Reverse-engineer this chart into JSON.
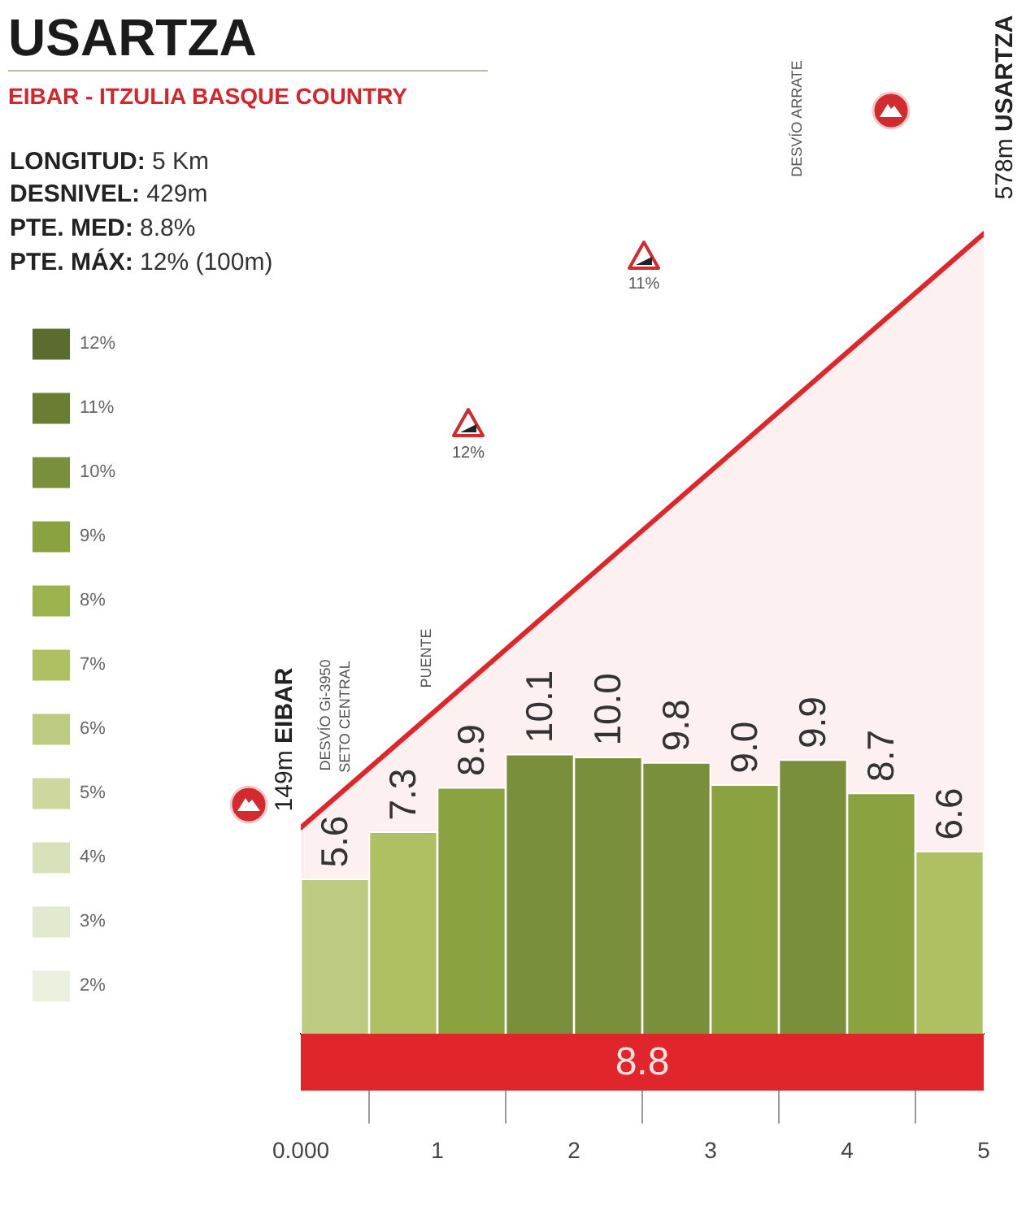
{
  "chart_data": {
    "type": "bar",
    "title": "USARTZA",
    "subtitle": "EIBAR - ITZULIA BASQUE COUNTRY",
    "x": [
      0.25,
      0.75,
      1.25,
      1.75,
      2.25,
      2.75,
      3.25,
      3.75,
      4.25,
      4.75
    ],
    "xlim": [
      0,
      5
    ],
    "xticks": [
      {
        "value": 0,
        "label": "0.000"
      },
      1,
      2,
      3,
      4,
      5
    ],
    "tick_labels": "x",
    "legend": "left",
    "series": [
      {
        "type": "area",
        "x": [
          0,
          5
        ],
        "values": [
          149,
          578
        ],
        "value_labels": [
          "149m EIBAR",
          "578m USARTZA"
        ],
        "color": "#e0262b"
      },
      {
        "name": "12%",
        "color": "#5c6b2e",
        "axis": "y2",
        "values": [
          null,
          null,
          null,
          null,
          null,
          null,
          null,
          null,
          null,
          null
        ]
      },
      {
        "name": "11%",
        "color": "#6a7d33",
        "axis": "y2",
        "values": [
          null,
          null,
          null,
          null,
          null,
          null,
          null,
          null,
          null,
          null
        ]
      },
      {
        "name": "10%",
        "color": "#7a8f3c",
        "axis": "y2",
        "values": [
          null,
          null,
          null,
          10.1,
          10.0,
          9.8,
          null,
          9.9,
          null,
          null
        ],
        "value_labels": [
          null,
          null,
          null,
          "10.1",
          "10.0",
          "9.8",
          null,
          "9.9",
          null,
          null
        ]
      },
      {
        "name": "9%",
        "color": "#8aa23f",
        "axis": "y2",
        "values": [
          null,
          null,
          8.9,
          null,
          null,
          null,
          9.0,
          null,
          8.7,
          null
        ],
        "value_labels": [
          null,
          null,
          "8.9",
          null,
          null,
          null,
          "9.0",
          null,
          "8.7",
          null
        ]
      },
      {
        "name": "8%",
        "color": "#9cb24c",
        "axis": "y2",
        "values": [
          null,
          null,
          null,
          null,
          null,
          null,
          null,
          null,
          null,
          null
        ]
      },
      {
        "name": "7%",
        "color": "#aec062",
        "axis": "y2",
        "values": [
          null,
          7.3,
          null,
          null,
          null,
          null,
          null,
          null,
          null,
          6.6
        ],
        "value_labels": [
          null,
          "7.3",
          null,
          null,
          null,
          null,
          null,
          null,
          null,
          "6.6"
        ]
      },
      {
        "name": "6%",
        "color": "#bccb80",
        "axis": "y2",
        "values": [
          5.6,
          null,
          null,
          null,
          null,
          null,
          null,
          null,
          null,
          null
        ],
        "value_labels": [
          "5.6",
          null,
          null,
          null,
          null,
          null,
          null,
          null,
          null,
          null
        ]
      },
      {
        "name": "5%",
        "color": "#cdd79e",
        "axis": "y2",
        "values": [
          null,
          null,
          null,
          null,
          null,
          null,
          null,
          null,
          null,
          null
        ]
      },
      {
        "name": "4%",
        "color": "#d9e1ba",
        "axis": "y2",
        "values": [
          null,
          null,
          null,
          null,
          null,
          null,
          null,
          null,
          null,
          null
        ]
      },
      {
        "name": "3%",
        "color": "#e3e9ce",
        "axis": "y2",
        "values": [
          null,
          null,
          null,
          null,
          null,
          null,
          null,
          null,
          null,
          null
        ]
      },
      {
        "name": "2%",
        "color": "#ebf0df",
        "axis": "y2",
        "values": [
          null,
          null,
          null,
          null,
          null,
          null,
          null,
          null,
          null,
          null
        ]
      }
    ],
    "annotations": [
      "LONGITUD: 5 Km",
      "DESNIVEL: 429m",
      "PTE. MED: 8.8%",
      "PTE. MÁX: 12% (100m)",
      "DESVÍO Gi-3950",
      "SETO CENTRAL",
      "PUENTE",
      "DESVÍO ARRATE",
      "12%",
      "11%",
      "8.8"
    ]
  }
}
